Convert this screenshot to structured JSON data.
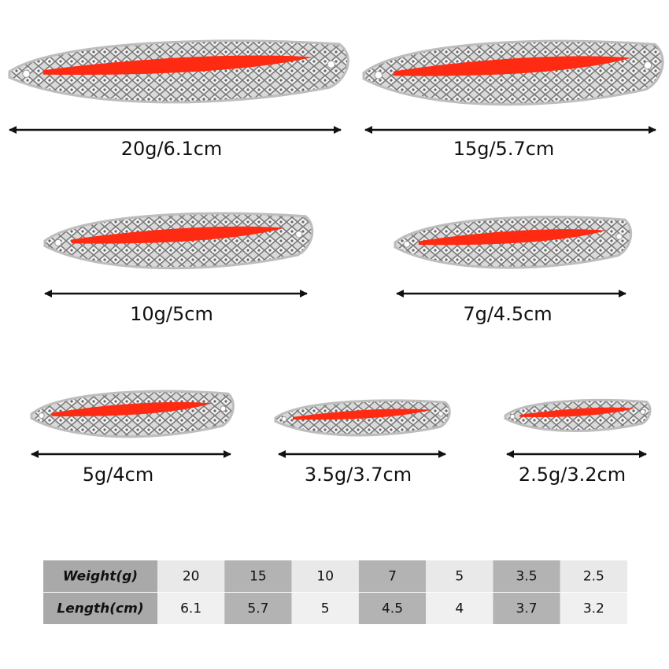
{
  "labels": [
    "20g/6.1cm",
    "15g/5.7cm",
    "10g/5cm",
    "7g/4.5cm",
    "5g/4cm",
    "3.5g/3.7cm",
    "2.5g/3.2cm"
  ],
  "table": {
    "rows": [
      [
        "Weight(g)",
        "20",
        "15",
        "10",
        "7",
        "5",
        "3.5",
        "2.5"
      ],
      [
        "Length(cm)",
        "6.1",
        "5.7",
        "5",
        "4.5",
        "4",
        "3.7",
        "3.2"
      ]
    ]
  }
}
